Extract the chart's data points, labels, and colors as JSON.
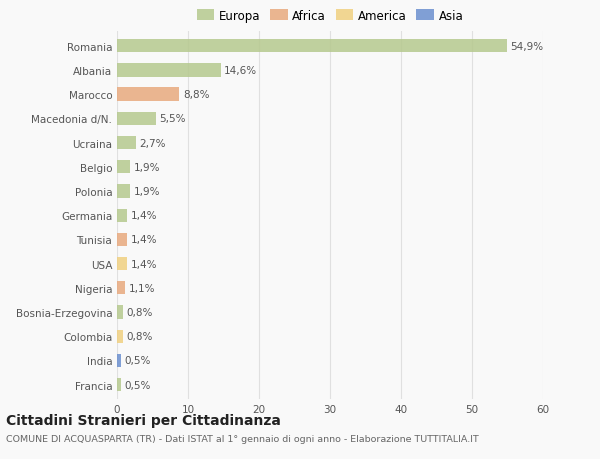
{
  "countries": [
    "Romania",
    "Albania",
    "Marocco",
    "Macedonia d/N.",
    "Ucraina",
    "Belgio",
    "Polonia",
    "Germania",
    "Tunisia",
    "USA",
    "Nigeria",
    "Bosnia-Erzegovina",
    "Colombia",
    "India",
    "Francia"
  ],
  "values": [
    54.9,
    14.6,
    8.8,
    5.5,
    2.7,
    1.9,
    1.9,
    1.4,
    1.4,
    1.4,
    1.1,
    0.8,
    0.8,
    0.5,
    0.5
  ],
  "labels": [
    "54,9%",
    "14,6%",
    "8,8%",
    "5,5%",
    "2,7%",
    "1,9%",
    "1,9%",
    "1,4%",
    "1,4%",
    "1,4%",
    "1,1%",
    "0,8%",
    "0,8%",
    "0,5%",
    "0,5%"
  ],
  "continents": [
    "Europa",
    "Europa",
    "Africa",
    "Europa",
    "Europa",
    "Europa",
    "Europa",
    "Europa",
    "Africa",
    "America",
    "Africa",
    "Europa",
    "America",
    "Asia",
    "Europa"
  ],
  "colors": {
    "Europa": "#b5c98e",
    "Africa": "#e8a97e",
    "America": "#f0d080",
    "Asia": "#6b8fcf"
  },
  "xlim": [
    0,
    60
  ],
  "xticks": [
    0,
    10,
    20,
    30,
    40,
    50,
    60
  ],
  "title": "Cittadini Stranieri per Cittadinanza",
  "subtitle": "COMUNE DI ACQUASPARTA (TR) - Dati ISTAT al 1° gennaio di ogni anno - Elaborazione TUTTITALIA.IT",
  "background_color": "#f9f9f9",
  "bar_height": 0.55,
  "grid_color": "#e0e0e0",
  "text_color": "#555555",
  "label_fontsize": 7.5,
  "tick_fontsize": 7.5,
  "title_fontsize": 10,
  "subtitle_fontsize": 6.8,
  "legend_order": [
    "Europa",
    "Africa",
    "America",
    "Asia"
  ]
}
